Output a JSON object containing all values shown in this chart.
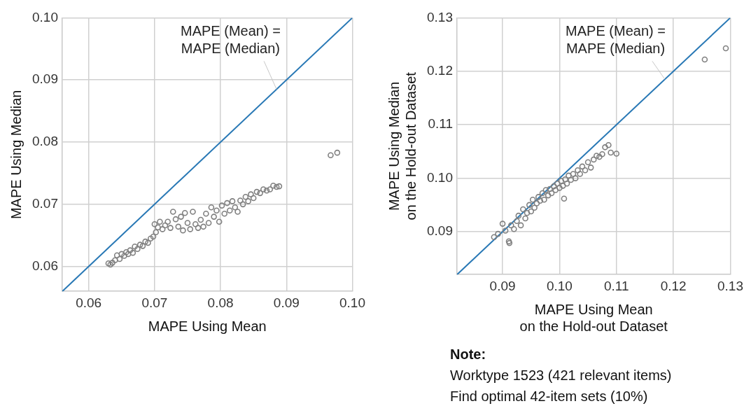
{
  "chart_data": [
    {
      "type": "scatter",
      "xlabel": "MAPE Using Mean",
      "ylabel": "MAPE Using Median",
      "xlim": [
        0.056,
        0.1
      ],
      "ylim": [
        0.056,
        0.1
      ],
      "xticks": [
        {
          "value": 0.06,
          "label": "0.06"
        },
        {
          "value": 0.07,
          "label": "0.07"
        },
        {
          "value": 0.08,
          "label": "0.08"
        },
        {
          "value": 0.09,
          "label": "0.09"
        },
        {
          "value": 0.1,
          "label": "0.10"
        }
      ],
      "yticks": [
        {
          "value": 0.06,
          "label": "0.06"
        },
        {
          "value": 0.07,
          "label": "0.07"
        },
        {
          "value": 0.08,
          "label": "0.08"
        },
        {
          "value": 0.09,
          "label": "0.09"
        },
        {
          "value": 0.1,
          "label": "0.10"
        }
      ],
      "grid": true,
      "legend": false,
      "annotations": [
        {
          "text": "MAPE (Mean) =\nMAPE (Median)",
          "x": 0.0885,
          "y": 0.0885
        }
      ],
      "series": [
        {
          "marker": "circle",
          "color": "#808080",
          "x": [
            0.063,
            0.0633,
            0.0636,
            0.064,
            0.0643,
            0.0647,
            0.065,
            0.0654,
            0.0657,
            0.066,
            0.0663,
            0.0667,
            0.067,
            0.0674,
            0.0678,
            0.0682,
            0.0686,
            0.069,
            0.0694,
            0.0698,
            0.07,
            0.0702,
            0.0705,
            0.0708,
            0.0712,
            0.0716,
            0.072,
            0.0724,
            0.0728,
            0.0732,
            0.0736,
            0.074,
            0.0743,
            0.0746,
            0.075,
            0.0754,
            0.0758,
            0.0762,
            0.0766,
            0.077,
            0.0774,
            0.0778,
            0.0782,
            0.0786,
            0.079,
            0.0794,
            0.0798,
            0.0802,
            0.0806,
            0.081,
            0.0814,
            0.0818,
            0.0822,
            0.0826,
            0.083,
            0.0834,
            0.0838,
            0.0842,
            0.0846,
            0.085,
            0.0855,
            0.086,
            0.0865,
            0.087,
            0.0875,
            0.088,
            0.0885,
            0.0889,
            0.0967,
            0.0977
          ],
          "values": [
            0.0605,
            0.0603,
            0.0606,
            0.061,
            0.0618,
            0.0612,
            0.062,
            0.0617,
            0.0623,
            0.062,
            0.0626,
            0.0622,
            0.0632,
            0.0628,
            0.0635,
            0.0633,
            0.064,
            0.0638,
            0.0645,
            0.0648,
            0.0668,
            0.0655,
            0.0663,
            0.0672,
            0.066,
            0.0666,
            0.0672,
            0.0662,
            0.0688,
            0.0676,
            0.0664,
            0.068,
            0.0658,
            0.0686,
            0.067,
            0.066,
            0.0688,
            0.0668,
            0.0662,
            0.0675,
            0.0664,
            0.0685,
            0.067,
            0.0695,
            0.068,
            0.069,
            0.0672,
            0.0698,
            0.0685,
            0.0702,
            0.069,
            0.0705,
            0.0695,
            0.0688,
            0.0706,
            0.07,
            0.0712,
            0.0705,
            0.0716,
            0.071,
            0.072,
            0.0718,
            0.0724,
            0.0722,
            0.0724,
            0.073,
            0.0728,
            0.0729,
            0.0779,
            0.0783
          ]
        },
        {
          "type": "line",
          "marker": "none",
          "color": "#2878b5",
          "x": [
            0.056,
            0.1
          ],
          "values": [
            0.056,
            0.1
          ]
        }
      ]
    },
    {
      "type": "scatter",
      "xlabel": "MAPE Using Mean\non the Hold-out Dataset",
      "ylabel": "MAPE Using Median\non the Hold-out Dataset",
      "xlim": [
        0.082,
        0.13
      ],
      "ylim": [
        0.082,
        0.13
      ],
      "xticks": [
        0.09,
        {
          "value": 0.1,
          "label": "0.10"
        },
        0.11,
        0.12,
        0.13
      ],
      "yticks": [
        0.09,
        {
          "value": 0.1,
          "label": "0.10"
        },
        0.11,
        0.12,
        0.13
      ],
      "grid": true,
      "legend": false,
      "annotations": [
        {
          "text": "MAPE (Mean) =\nMAPE (Median)",
          "x": 0.1185,
          "y": 0.1185
        },
        "Note:",
        "Worktype 1523 (421 relevant items)",
        "Find optimal 42-item sets (10%)"
      ],
      "series": [
        {
          "marker": "circle",
          "color": "#808080",
          "x": [
            0.0885,
            0.0892,
            0.09,
            0.0905,
            0.0911,
            0.0912,
            0.0915,
            0.092,
            0.0925,
            0.0928,
            0.0932,
            0.0936,
            0.094,
            0.0943,
            0.0947,
            0.095,
            0.0953,
            0.0956,
            0.096,
            0.0963,
            0.0966,
            0.097,
            0.0973,
            0.0976,
            0.098,
            0.0983,
            0.0986,
            0.099,
            0.0993,
            0.0996,
            0.1,
            0.1003,
            0.1006,
            0.1008,
            0.101,
            0.1013,
            0.1016,
            0.102,
            0.1024,
            0.1028,
            0.1032,
            0.1036,
            0.104,
            0.1045,
            0.105,
            0.1055,
            0.106,
            0.1065,
            0.107,
            0.1075,
            0.108,
            0.1086,
            0.109,
            0.11,
            0.1255,
            0.1292
          ],
          "values": [
            0.089,
            0.0896,
            0.0915,
            0.0902,
            0.0882,
            0.0879,
            0.0912,
            0.0905,
            0.092,
            0.093,
            0.0912,
            0.0942,
            0.0925,
            0.0935,
            0.095,
            0.0938,
            0.096,
            0.0945,
            0.0953,
            0.0965,
            0.0958,
            0.0972,
            0.096,
            0.0978,
            0.0968,
            0.098,
            0.0972,
            0.0985,
            0.0978,
            0.099,
            0.0982,
            0.0995,
            0.0986,
            0.0962,
            0.0998,
            0.099,
            0.1005,
            0.0997,
            0.1008,
            0.1,
            0.1015,
            0.1008,
            0.1022,
            0.1015,
            0.103,
            0.102,
            0.1035,
            0.1042,
            0.104,
            0.1045,
            0.1058,
            0.1062,
            0.1048,
            0.1046,
            0.1222,
            0.1243
          ]
        },
        {
          "type": "line",
          "marker": "none",
          "color": "#2878b5",
          "x": [
            0.082,
            0.13
          ],
          "values": [
            0.082,
            0.13
          ]
        }
      ]
    }
  ]
}
